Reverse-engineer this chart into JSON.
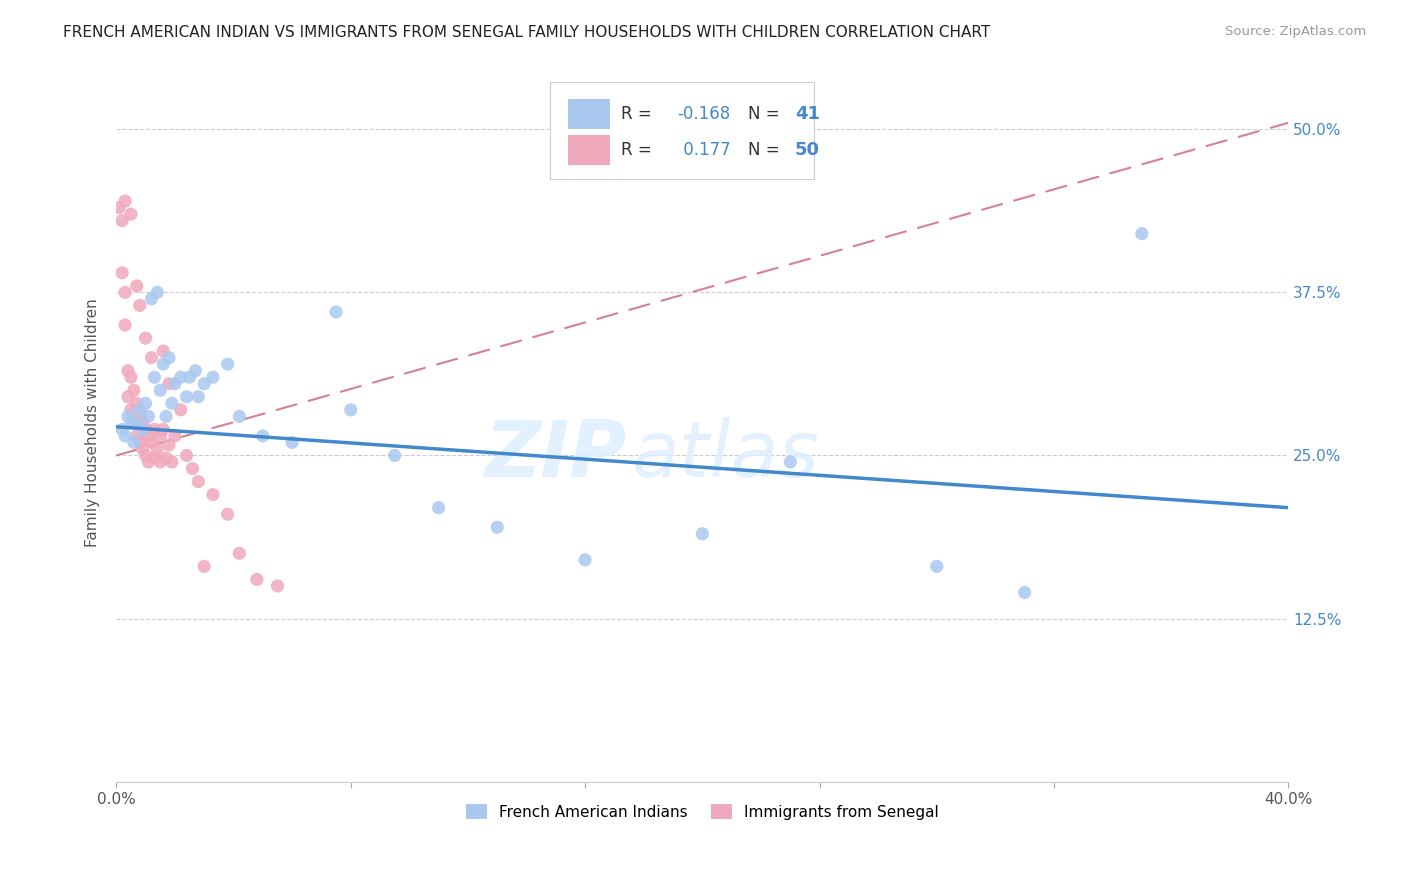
{
  "title": "FRENCH AMERICAN INDIAN VS IMMIGRANTS FROM SENEGAL FAMILY HOUSEHOLDS WITH CHILDREN CORRELATION CHART",
  "source": "Source: ZipAtlas.com",
  "ylabel": "Family Households with Children",
  "xlim": [
    0.0,
    0.4
  ],
  "ylim": [
    0.0,
    0.55
  ],
  "xticks": [
    0.0,
    0.08,
    0.16,
    0.24,
    0.32,
    0.4
  ],
  "xtick_labels": [
    "0.0%",
    "",
    "",
    "",
    "",
    "40.0%"
  ],
  "yticks": [
    0.0,
    0.125,
    0.25,
    0.375,
    0.5
  ],
  "ytick_labels": [
    "",
    "12.5%",
    "25.0%",
    "37.5%",
    "50.0%"
  ],
  "blue_R": -0.168,
  "blue_N": 41,
  "pink_R": 0.177,
  "pink_N": 50,
  "blue_color": "#a8c8f0",
  "pink_color": "#f0a8bc",
  "blue_line_color": "#4488cc",
  "pink_line_color": "#d88090",
  "right_label_color": "#4488cc",
  "blue_scatter_x": [
    0.002,
    0.003,
    0.004,
    0.005,
    0.006,
    0.007,
    0.008,
    0.009,
    0.01,
    0.011,
    0.012,
    0.013,
    0.014,
    0.015,
    0.016,
    0.017,
    0.018,
    0.019,
    0.02,
    0.022,
    0.024,
    0.025,
    0.027,
    0.028,
    0.03,
    0.033,
    0.038,
    0.042,
    0.05,
    0.06,
    0.075,
    0.08,
    0.095,
    0.11,
    0.13,
    0.16,
    0.2,
    0.23,
    0.28,
    0.31,
    0.35
  ],
  "blue_scatter_y": [
    0.27,
    0.265,
    0.28,
    0.275,
    0.26,
    0.275,
    0.285,
    0.27,
    0.29,
    0.28,
    0.37,
    0.31,
    0.375,
    0.3,
    0.32,
    0.28,
    0.325,
    0.29,
    0.305,
    0.31,
    0.295,
    0.31,
    0.315,
    0.295,
    0.305,
    0.31,
    0.32,
    0.28,
    0.265,
    0.26,
    0.36,
    0.285,
    0.25,
    0.21,
    0.195,
    0.17,
    0.19,
    0.245,
    0.165,
    0.145,
    0.42
  ],
  "pink_scatter_x": [
    0.001,
    0.002,
    0.002,
    0.003,
    0.003,
    0.004,
    0.004,
    0.005,
    0.005,
    0.006,
    0.006,
    0.007,
    0.007,
    0.008,
    0.008,
    0.009,
    0.009,
    0.01,
    0.01,
    0.011,
    0.011,
    0.012,
    0.013,
    0.013,
    0.014,
    0.015,
    0.015,
    0.016,
    0.017,
    0.018,
    0.019,
    0.02,
    0.022,
    0.024,
    0.026,
    0.028,
    0.03,
    0.033,
    0.038,
    0.042,
    0.048,
    0.055,
    0.003,
    0.005,
    0.007,
    0.008,
    0.01,
    0.012,
    0.016,
    0.018
  ],
  "pink_scatter_y": [
    0.44,
    0.43,
    0.39,
    0.375,
    0.35,
    0.315,
    0.295,
    0.31,
    0.285,
    0.3,
    0.275,
    0.29,
    0.265,
    0.28,
    0.26,
    0.275,
    0.255,
    0.27,
    0.25,
    0.265,
    0.245,
    0.26,
    0.27,
    0.248,
    0.255,
    0.265,
    0.245,
    0.27,
    0.248,
    0.258,
    0.245,
    0.265,
    0.285,
    0.25,
    0.24,
    0.23,
    0.165,
    0.22,
    0.205,
    0.175,
    0.155,
    0.15,
    0.445,
    0.435,
    0.38,
    0.365,
    0.34,
    0.325,
    0.33,
    0.305
  ]
}
